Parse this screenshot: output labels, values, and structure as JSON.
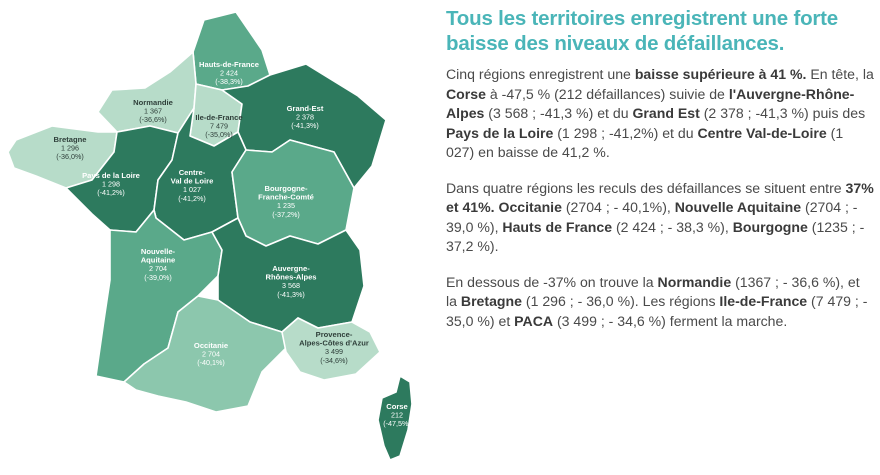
{
  "colors": {
    "darkest": "#2d7a5e",
    "dark": "#3f8f72",
    "medium": "#5aa98a",
    "light": "#8cc7ad",
    "lightest": "#b7dcc9",
    "headline": "#4ab5b8"
  },
  "regions": [
    {
      "key": "hauts_de_france",
      "name": "Hauts-de-France",
      "count": "2 424",
      "pct": "(-38,3%)"
    },
    {
      "key": "normandie",
      "name": "Normandie",
      "count": "1 367",
      "pct": "(-36,6%)"
    },
    {
      "key": "ile_de_france",
      "name": "Ile-de-France",
      "count": "7 479",
      "pct": "(-35,0%)"
    },
    {
      "key": "grand_est",
      "name": "Grand-Est",
      "count": "2 378",
      "pct": "(-41,3%)"
    },
    {
      "key": "bretagne",
      "name": "Bretagne",
      "count": "1 296",
      "pct": "(-36,0%)"
    },
    {
      "key": "pays_de_la_loire",
      "name": "Pays de la Loire",
      "count": "1 298",
      "pct": "(-41,2%)"
    },
    {
      "key": "centre_val_de_loire",
      "name": [
        "Centre-",
        "Val de Loire"
      ],
      "count": "1 027",
      "pct": "(-41,2%)"
    },
    {
      "key": "bourgogne_franche_comte",
      "name": [
        "Bourgogne-",
        "Franche-Comté"
      ],
      "count": "1 235",
      "pct": "(-37,2%)"
    },
    {
      "key": "nouvelle_aquitaine",
      "name": [
        "Nouvelle-",
        "Aquitaine"
      ],
      "count": "2 704",
      "pct": "(-39,0%)"
    },
    {
      "key": "auvergne_rhone_alpes",
      "name": [
        "Auvergne-",
        "Rhônes-Alpes"
      ],
      "count": "3 568",
      "pct": "(-41,3%)"
    },
    {
      "key": "occitanie",
      "name": "Occitanie",
      "count": "2 704",
      "pct": "(-40,1%)"
    },
    {
      "key": "paca",
      "name": [
        "Provence-",
        "Alpes-Côtes d'Azur"
      ],
      "count": "3 499",
      "pct": "(-34,6%)"
    },
    {
      "key": "corse",
      "name": "Corse",
      "count": "212",
      "pct": "(-47,5%)"
    }
  ],
  "headline": "Tous les territoires enregistrent une forte baisse des niveaux de défaillances.",
  "paragraphs": [
    [
      {
        "t": "Cinq régions enregistrent une "
      },
      {
        "b": "baisse supérieure à 41 %."
      },
      {
        "t": " En tête, la "
      },
      {
        "b": "Corse"
      },
      {
        "t": " à -47,5 % (212 défaillances) suivie de "
      },
      {
        "b": "l'Auvergne-Rhône-Alpes"
      },
      {
        "t": " (3 568 ; -41,3 %) et du "
      },
      {
        "b": "Grand Est"
      },
      {
        "t": " (2 378 ; -41,3 %) puis des "
      },
      {
        "b": "Pays de la Loire"
      },
      {
        "t": " (1 298 ; -41,2%) et du "
      },
      {
        "b": "Centre Val-de-Loire"
      },
      {
        "t": " (1 027) en baisse de 41,2 %."
      }
    ],
    [
      {
        "t": "Dans quatre régions les reculs des défaillances se situent entre "
      },
      {
        "b": "37% et 41%. Occitanie"
      },
      {
        "t": " (2704 ; - 40,1%), "
      },
      {
        "b": "Nouvelle Aquitaine"
      },
      {
        "t": " (2704 ; - 39,0 %), "
      },
      {
        "b": "Hauts de France"
      },
      {
        "t": " (2 424 ; - 38,3 %), "
      },
      {
        "b": "Bourgogne"
      },
      {
        "t": " (1235 ; - 37,2 %)."
      }
    ],
    [
      {
        "t": "En dessous de -37% on trouve la "
      },
      {
        "b": "Normandie"
      },
      {
        "t": " (1367 ; - 36,6 %), et la "
      },
      {
        "b": "Bretagne"
      },
      {
        "t": " (1 296 ; - 36,0 %). Les régions "
      },
      {
        "b": "Ile-de-France"
      },
      {
        "t": " (7 479 ; - 35,0 %) et "
      },
      {
        "b": "PACA"
      },
      {
        "t": " (3 499 ; - 34,6 %) ferment la marche."
      }
    ]
  ]
}
